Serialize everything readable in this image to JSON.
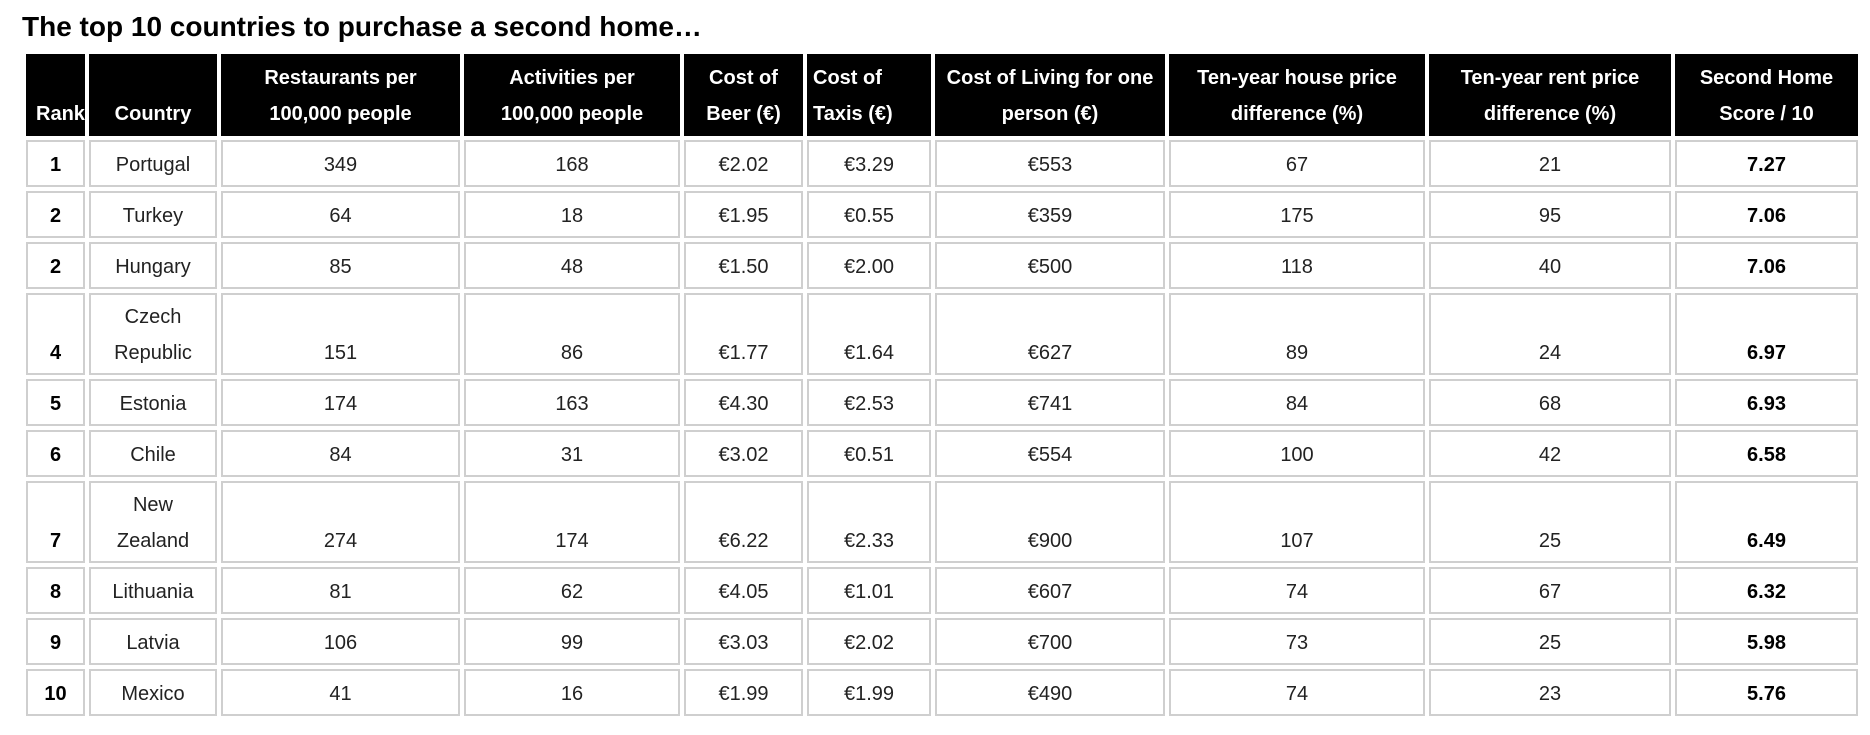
{
  "page": {
    "title": "The top 10 countries to purchase a second home…"
  },
  "table": {
    "headers": [
      "Rank",
      "Country",
      "Restaurants per 100,000 people",
      "Activities per 100,000 people",
      "Cost of Beer (€)",
      "Cost of Taxis (€)",
      "Cost of Living for one person (€)",
      "Ten-year house price difference (%)",
      "Ten-year rent price difference (%)",
      "Second Home Score / 10"
    ],
    "rows": [
      [
        "1",
        "Portugal",
        "349",
        "168",
        "€2.02",
        "€3.29",
        "€553",
        "67",
        "21",
        "7.27"
      ],
      [
        "2",
        "Turkey",
        "64",
        "18",
        "€1.95",
        "€0.55",
        "€359",
        "175",
        "95",
        "7.06"
      ],
      [
        "2",
        "Hungary",
        "85",
        "48",
        "€1.50",
        "€2.00",
        "€500",
        "118",
        "40",
        "7.06"
      ],
      [
        "4",
        "Czech Republic",
        "151",
        "86",
        "€1.77",
        "€1.64",
        "€627",
        "89",
        "24",
        "6.97"
      ],
      [
        "5",
        "Estonia",
        "174",
        "163",
        "€4.30",
        "€2.53",
        "€741",
        "84",
        "68",
        "6.93"
      ],
      [
        "6",
        "Chile",
        "84",
        "31",
        "€3.02",
        "€0.51",
        "€554",
        "100",
        "42",
        "6.58"
      ],
      [
        "7",
        "New Zealand",
        "274",
        "174",
        "€6.22",
        "€2.33",
        "€900",
        "107",
        "25",
        "6.49"
      ],
      [
        "8",
        "Lithuania",
        "81",
        "62",
        "€4.05",
        "€1.01",
        "€607",
        "74",
        "67",
        "6.32"
      ],
      [
        "9",
        "Latvia",
        "106",
        "99",
        "€3.03",
        "€2.02",
        "€700",
        "73",
        "25",
        "5.98"
      ],
      [
        "10",
        "Mexico",
        "41",
        "16",
        "€1.99",
        "€1.99",
        "€490",
        "74",
        "23",
        "5.76"
      ]
    ]
  }
}
